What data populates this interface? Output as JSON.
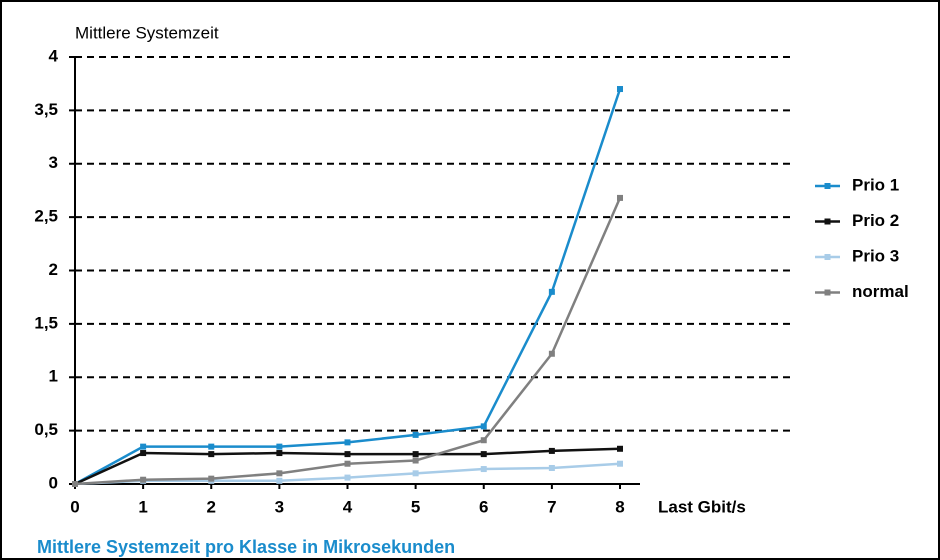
{
  "chart_data": {
    "type": "line",
    "y_label": "Mittlere Systemzeit",
    "x_label": "Last Gbit/s",
    "caption": "Mittlere Systemzeit pro Klasse in Mikrosekunden",
    "x": [
      0,
      1,
      2,
      3,
      4,
      5,
      6,
      7,
      8
    ],
    "series": [
      {
        "name": "Prio 1",
        "color": "#1a8ccc",
        "values": [
          0,
          0.35,
          0.35,
          0.35,
          0.39,
          0.46,
          0.54,
          1.8,
          3.7
        ]
      },
      {
        "name": "Prio 2",
        "color": "#111111",
        "values": [
          0,
          0.29,
          0.28,
          0.29,
          0.28,
          0.28,
          0.28,
          0.31,
          0.33
        ]
      },
      {
        "name": "Prio 3",
        "color": "#a8cce8",
        "values": [
          0,
          0.03,
          0.03,
          0.03,
          0.06,
          0.1,
          0.14,
          0.15,
          0.19
        ]
      },
      {
        "name": "normal",
        "color": "#808080",
        "values": [
          0,
          0.04,
          0.05,
          0.1,
          0.19,
          0.22,
          0.41,
          1.22,
          2.68
        ]
      }
    ],
    "xlim": [
      0,
      8
    ],
    "xticks": [
      0,
      1,
      2,
      3,
      4,
      5,
      6,
      7,
      8
    ],
    "ylim": [
      0,
      4
    ],
    "yticks": [
      0,
      {
        "value": 0.5,
        "label": "0,5"
      },
      1,
      {
        "value": 1.5,
        "label": "1,5"
      },
      2,
      {
        "value": 2.5,
        "label": "2,5"
      },
      3,
      {
        "value": 3.5,
        "label": "3,5"
      },
      4
    ],
    "grid": true,
    "legend": "right"
  }
}
